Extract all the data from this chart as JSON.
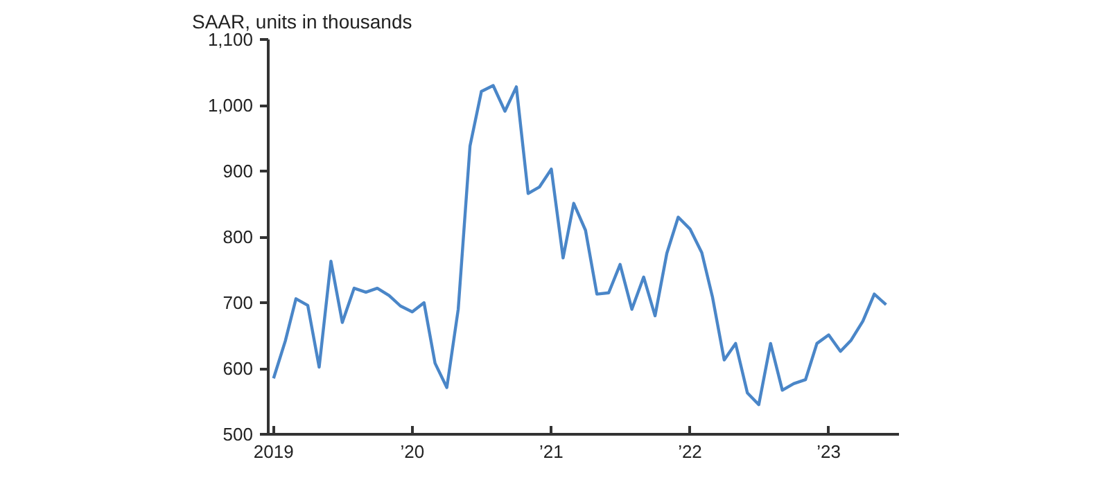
{
  "chart_data": {
    "type": "line",
    "ylabel": "SAAR, units in thousands",
    "x": [
      "2019-01",
      "2019-02",
      "2019-03",
      "2019-04",
      "2019-05",
      "2019-06",
      "2019-07",
      "2019-08",
      "2019-09",
      "2019-10",
      "2019-11",
      "2019-12",
      "2020-01",
      "2020-02",
      "2020-03",
      "2020-04",
      "2020-05",
      "2020-06",
      "2020-07",
      "2020-08",
      "2020-09",
      "2020-10",
      "2020-11",
      "2020-12",
      "2021-01",
      "2021-02",
      "2021-03",
      "2021-04",
      "2021-05",
      "2021-06",
      "2021-07",
      "2021-08",
      "2021-09",
      "2021-10",
      "2021-11",
      "2021-12",
      "2022-01",
      "2022-02",
      "2022-03",
      "2022-04",
      "2022-05",
      "2022-06",
      "2022-07",
      "2022-08",
      "2022-09",
      "2022-10",
      "2022-11",
      "2022-12",
      "2023-01",
      "2023-02",
      "2023-03",
      "2023-04",
      "2023-05",
      "2023-06"
    ],
    "series": [
      {
        "color": "#4a86c8",
        "values": [
          585,
          642,
          706,
          696,
          602,
          763,
          670,
          722,
          716,
          722,
          711,
          695,
          686,
          700,
          608,
          571,
          690,
          938,
          1021,
          1030,
          991,
          1028,
          866,
          876,
          903,
          768,
          851,
          810,
          713,
          715,
          758,
          690,
          739,
          680,
          775,
          830,
          812,
          776,
          709,
          613,
          638,
          563,
          545,
          638,
          567,
          577,
          583,
          638,
          651,
          626,
          643,
          672,
          713,
          697
        ]
      }
    ],
    "xlim": [
      "2018-12-18",
      "2023-07-05"
    ],
    "xticks": [
      {
        "value": "2019-01",
        "label": "2019"
      },
      {
        "value": "2020-01",
        "label": "’20"
      },
      {
        "value": "2021-01",
        "label": "’21"
      },
      {
        "value": "2022-01",
        "label": "’22"
      },
      {
        "value": "2023-01",
        "label": "’23"
      }
    ],
    "ylim": [
      500,
      1100
    ],
    "yticks": [
      {
        "value": 500,
        "label": "500"
      },
      {
        "value": 600,
        "label": "600"
      },
      {
        "value": 700,
        "label": "700"
      },
      {
        "value": 800,
        "label": "800"
      },
      {
        "value": 900,
        "label": "900"
      },
      {
        "value": 1000,
        "label": "1,000"
      },
      {
        "value": 1100,
        "label": "1,100"
      }
    ],
    "grid": false,
    "marker": "none",
    "line_style": "solid"
  }
}
